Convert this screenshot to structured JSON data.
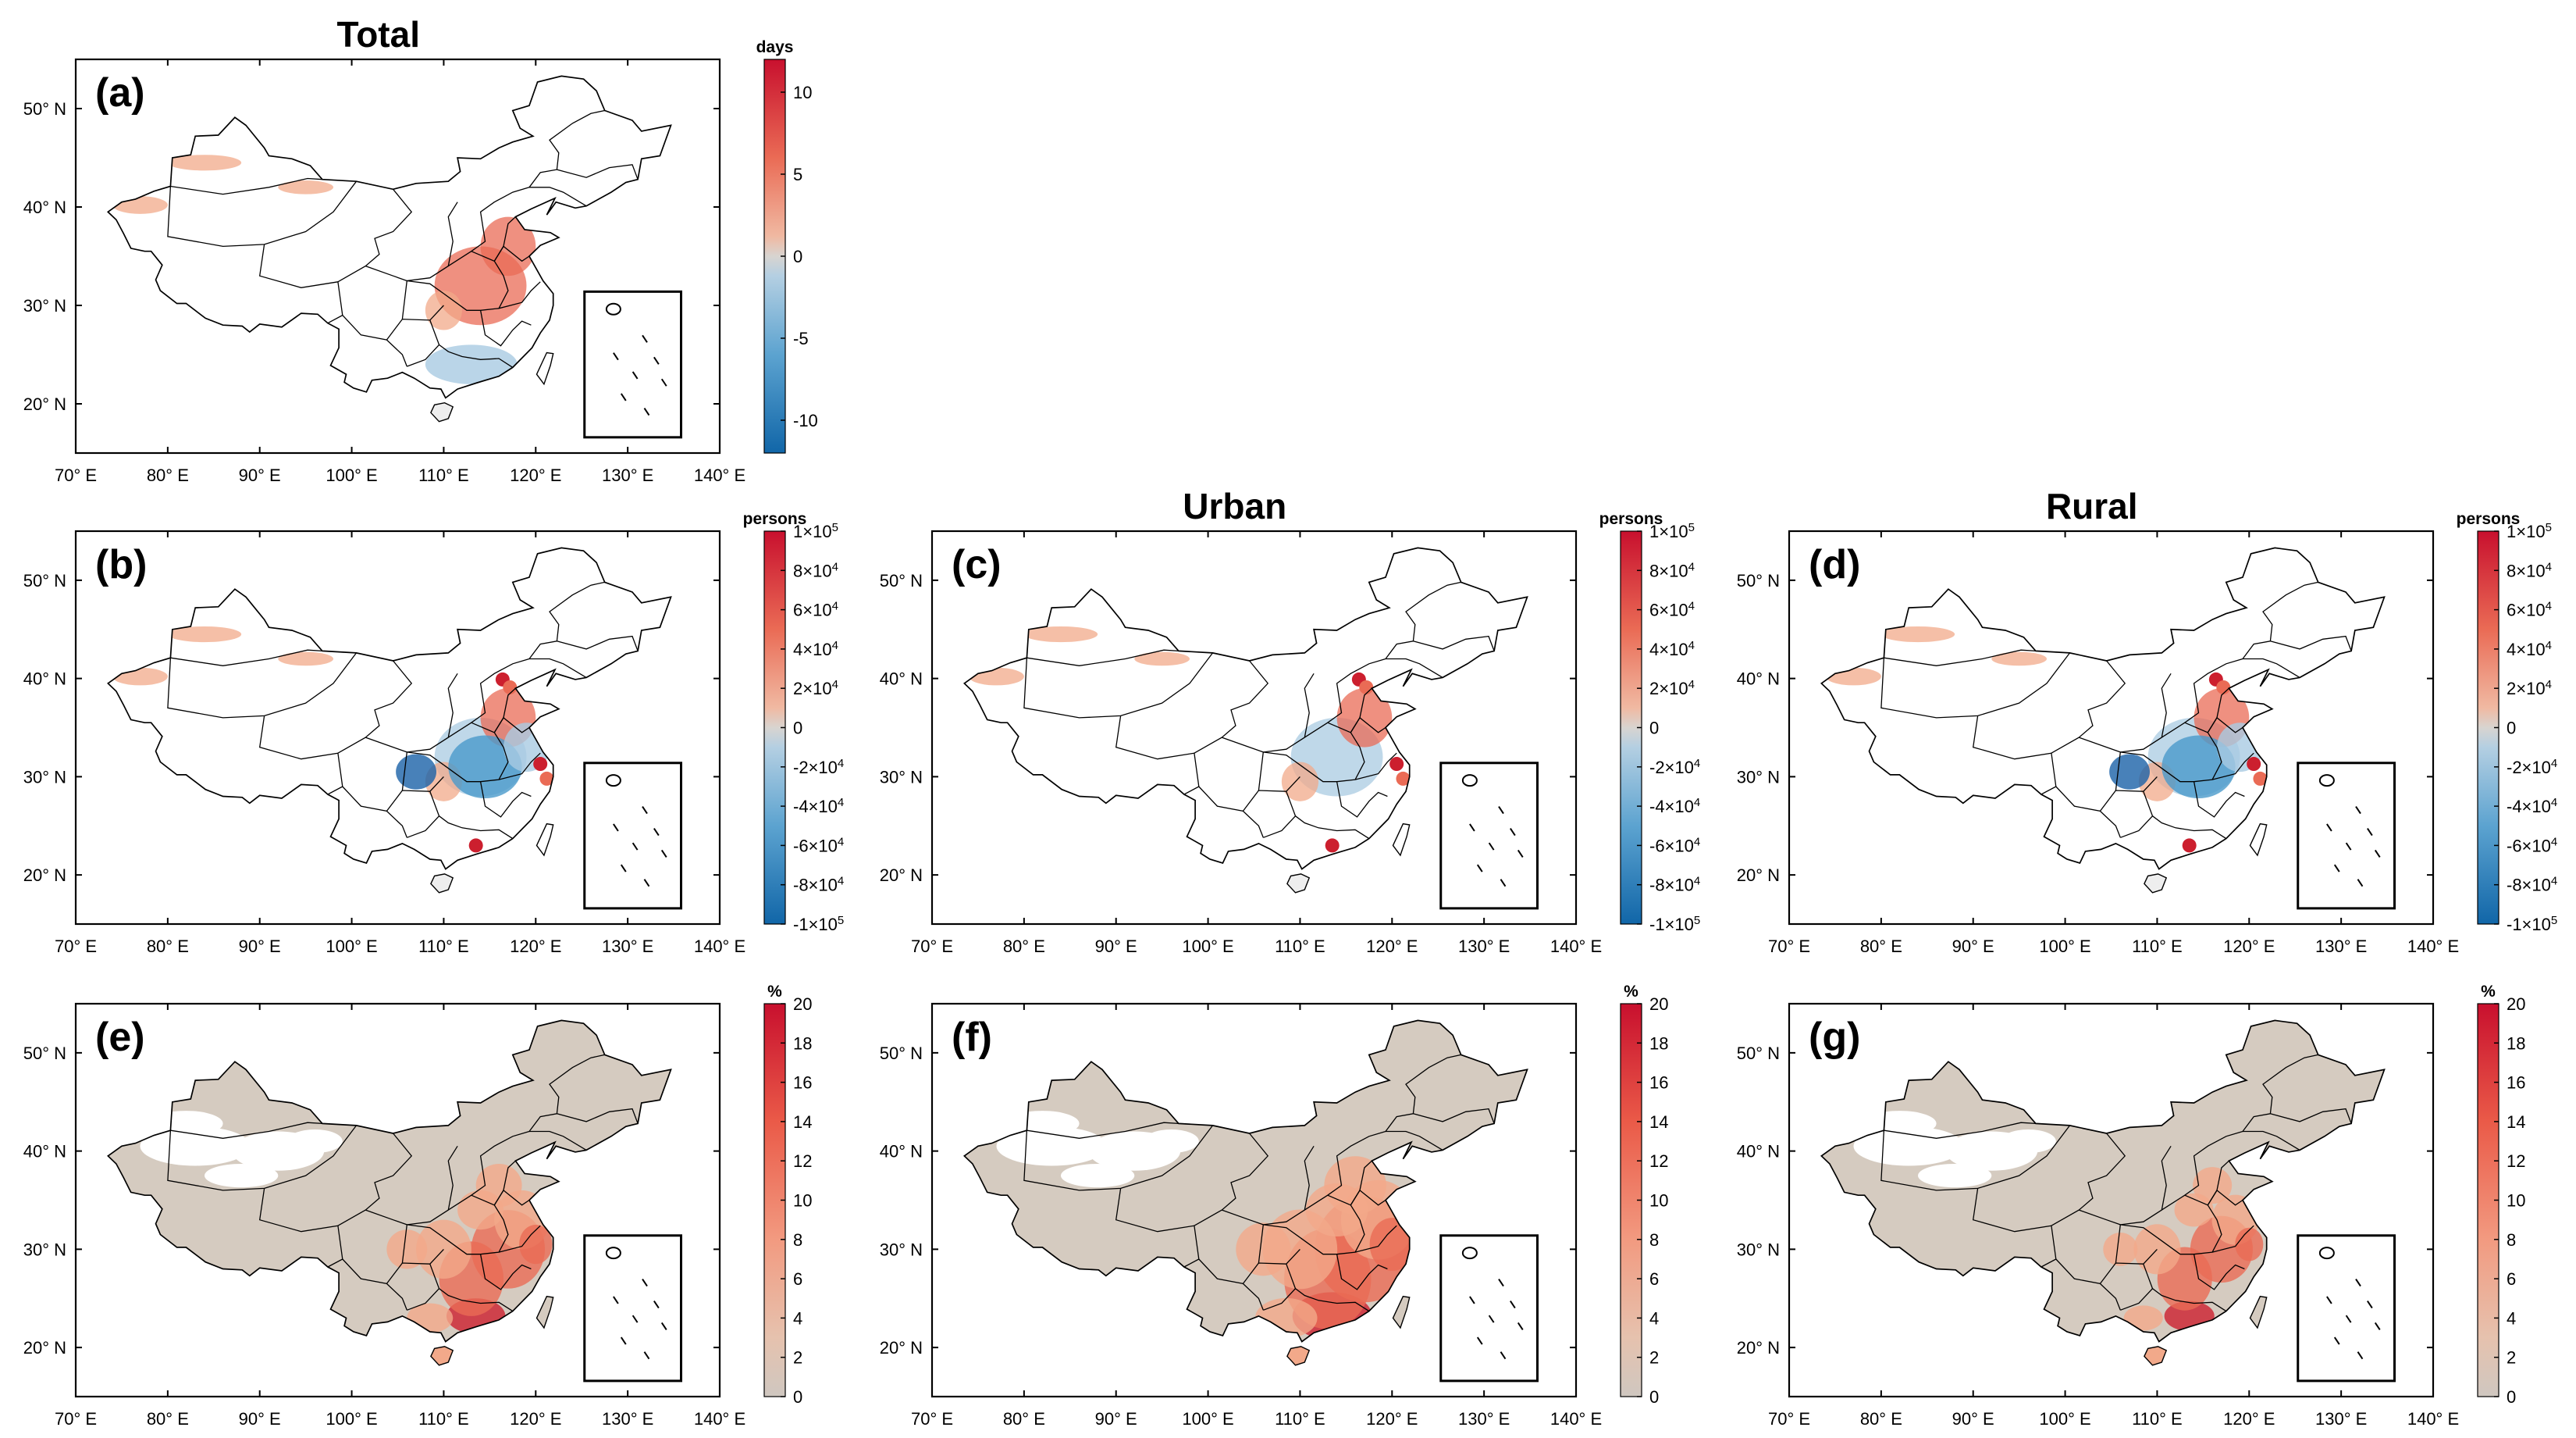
{
  "figure": {
    "column_titles": [
      "Total",
      "Urban",
      "Rural"
    ],
    "x_tick_labels": [
      "70° E",
      "80° E",
      "90° E",
      "100° E",
      "110° E",
      "120° E",
      "130° E",
      "140° E"
    ],
    "y_tick_labels": [
      "20° N",
      "30° N",
      "40° N",
      "50° N"
    ]
  },
  "colors": {
    "map_fill": "#d5cbc0",
    "warm_1": "#f2a98a",
    "warm_2": "#ea6b55",
    "warm_3": "#cc1f2e",
    "cool_1": "#a9cbe2",
    "cool_2": "#4a9acb",
    "cool_3": "#1a62a8",
    "gray_mid": "#cfcfcf"
  },
  "chart_data": [
    {
      "id": "a",
      "type": "heatmap",
      "panel_label": "(a)",
      "title": "Total",
      "variable": "days",
      "colorbar": {
        "unit": "days",
        "ticks": [
          "10",
          "5",
          "0",
          "-5",
          "-10"
        ],
        "range": [
          -12,
          12
        ],
        "diverging": true
      },
      "xlim": [
        70,
        140
      ],
      "ylim": [
        15,
        55
      ],
      "xlabel": "",
      "ylabel": ""
    },
    {
      "id": "b",
      "type": "heatmap",
      "panel_label": "(b)",
      "title": "",
      "variable": "persons",
      "colorbar": {
        "unit": "persons",
        "ticks": [
          "1×10⁵",
          "8×10⁴",
          "6×10⁴",
          "4×10⁴",
          "2×10⁴",
          "0",
          "-2×10⁴",
          "-4×10⁴",
          "-6×10⁴",
          "-8×10⁴",
          "-1×10⁵"
        ],
        "range": [
          -100000,
          100000
        ],
        "diverging": true
      },
      "xlim": [
        70,
        140
      ],
      "ylim": [
        15,
        55
      ]
    },
    {
      "id": "c",
      "type": "heatmap",
      "panel_label": "(c)",
      "title": "Urban",
      "variable": "persons",
      "colorbar": {
        "unit": "persons",
        "ticks": [
          "1×10⁵",
          "8×10⁴",
          "6×10⁴",
          "4×10⁴",
          "2×10⁴",
          "0",
          "-2×10⁴",
          "-4×10⁴",
          "-6×10⁴",
          "-8×10⁴",
          "-1×10⁵"
        ],
        "range": [
          -100000,
          100000
        ],
        "diverging": true
      },
      "xlim": [
        70,
        140
      ],
      "ylim": [
        15,
        55
      ]
    },
    {
      "id": "d",
      "type": "heatmap",
      "panel_label": "(d)",
      "title": "Rural",
      "variable": "persons",
      "colorbar": {
        "unit": "persons",
        "ticks": [
          "1×10⁵",
          "8×10⁴",
          "6×10⁴",
          "4×10⁴",
          "2×10⁴",
          "0",
          "-2×10⁴",
          "-4×10⁴",
          "-6×10⁴",
          "-8×10⁴",
          "-1×10⁵"
        ],
        "range": [
          -100000,
          100000
        ],
        "diverging": true
      },
      "xlim": [
        70,
        140
      ],
      "ylim": [
        15,
        55
      ]
    },
    {
      "id": "e",
      "type": "heatmap",
      "panel_label": "(e)",
      "title": "",
      "variable": "%",
      "colorbar": {
        "unit": "%",
        "ticks": [
          "20",
          "18",
          "16",
          "14",
          "12",
          "10",
          "8",
          "6",
          "4",
          "2",
          "0"
        ],
        "range": [
          0,
          20
        ],
        "diverging": false
      },
      "xlim": [
        70,
        140
      ],
      "ylim": [
        15,
        55
      ]
    },
    {
      "id": "f",
      "type": "heatmap",
      "panel_label": "(f)",
      "title": "",
      "variable": "%",
      "colorbar": {
        "unit": "%",
        "ticks": [
          "20",
          "18",
          "16",
          "14",
          "12",
          "10",
          "8",
          "6",
          "4",
          "2",
          "0"
        ],
        "range": [
          0,
          20
        ],
        "diverging": false
      },
      "xlim": [
        70,
        140
      ],
      "ylim": [
        15,
        55
      ]
    },
    {
      "id": "g",
      "type": "heatmap",
      "panel_label": "(g)",
      "title": "",
      "variable": "%",
      "colorbar": {
        "unit": "%",
        "ticks": [
          "20",
          "18",
          "16",
          "14",
          "12",
          "10",
          "8",
          "6",
          "4",
          "2",
          "0"
        ],
        "range": [
          0,
          20
        ],
        "diverging": false
      },
      "xlim": [
        70,
        140
      ],
      "ylim": [
        15,
        55
      ]
    }
  ]
}
